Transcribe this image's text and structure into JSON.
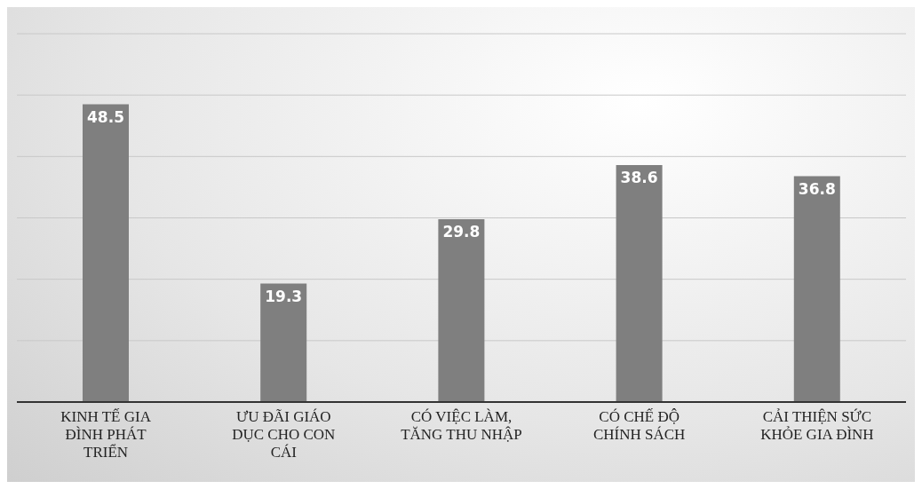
{
  "chart_data": {
    "type": "bar",
    "categories": [
      "KINH TẾ GIA ĐÌNH PHÁT TRIỂN",
      "ƯU ĐÃI GIÁO DỤC CHO CON CÁI",
      "CÓ VIỆC LÀM, TĂNG THU NHẬP",
      "CÓ CHẾ ĐỘ CHÍNH SÁCH",
      "CẢI THIỆN SỨC KHỎE GIA ĐÌNH"
    ],
    "values": [
      48.5,
      19.3,
      29.8,
      38.6,
      36.8
    ],
    "color": "#7f7f7f",
    "ylim": [
      0,
      60
    ],
    "yticks": [
      {
        "value": 0,
        "label": null
      },
      {
        "value": 10,
        "label": null
      },
      {
        "value": 20,
        "label": null
      },
      {
        "value": 30,
        "label": null
      },
      {
        "value": 40,
        "label": null
      },
      {
        "value": 50,
        "label": null
      },
      {
        "value": 60,
        "label": null
      }
    ],
    "grid": "y",
    "tick_labels": "x",
    "data_labels": true
  }
}
